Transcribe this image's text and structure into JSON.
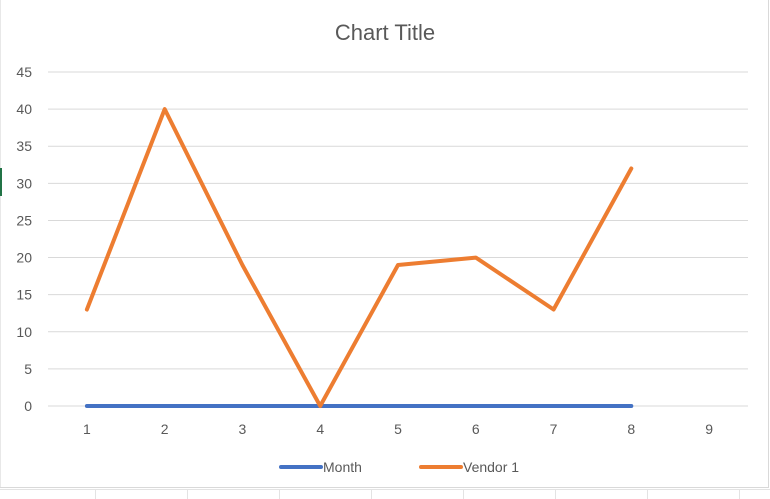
{
  "chart_data": {
    "type": "line",
    "title": "Chart Title",
    "xlabel": "",
    "ylabel": "",
    "x": [
      "1",
      "2",
      "3",
      "4",
      "5",
      "6",
      "7",
      "8",
      "9"
    ],
    "ylim": [
      0,
      45
    ],
    "yticks": [
      0,
      5,
      10,
      15,
      20,
      25,
      30,
      35,
      40,
      45
    ],
    "grid": true,
    "legend": "bottom",
    "series": [
      {
        "name": "Month",
        "color": "#4472c4",
        "values": [
          0,
          0,
          0,
          0,
          0,
          0,
          0,
          0,
          null
        ]
      },
      {
        "name": "Vendor 1",
        "color": "#ed7d31",
        "values": [
          13,
          40,
          19,
          0,
          19,
          20,
          13,
          32,
          null
        ]
      }
    ]
  }
}
